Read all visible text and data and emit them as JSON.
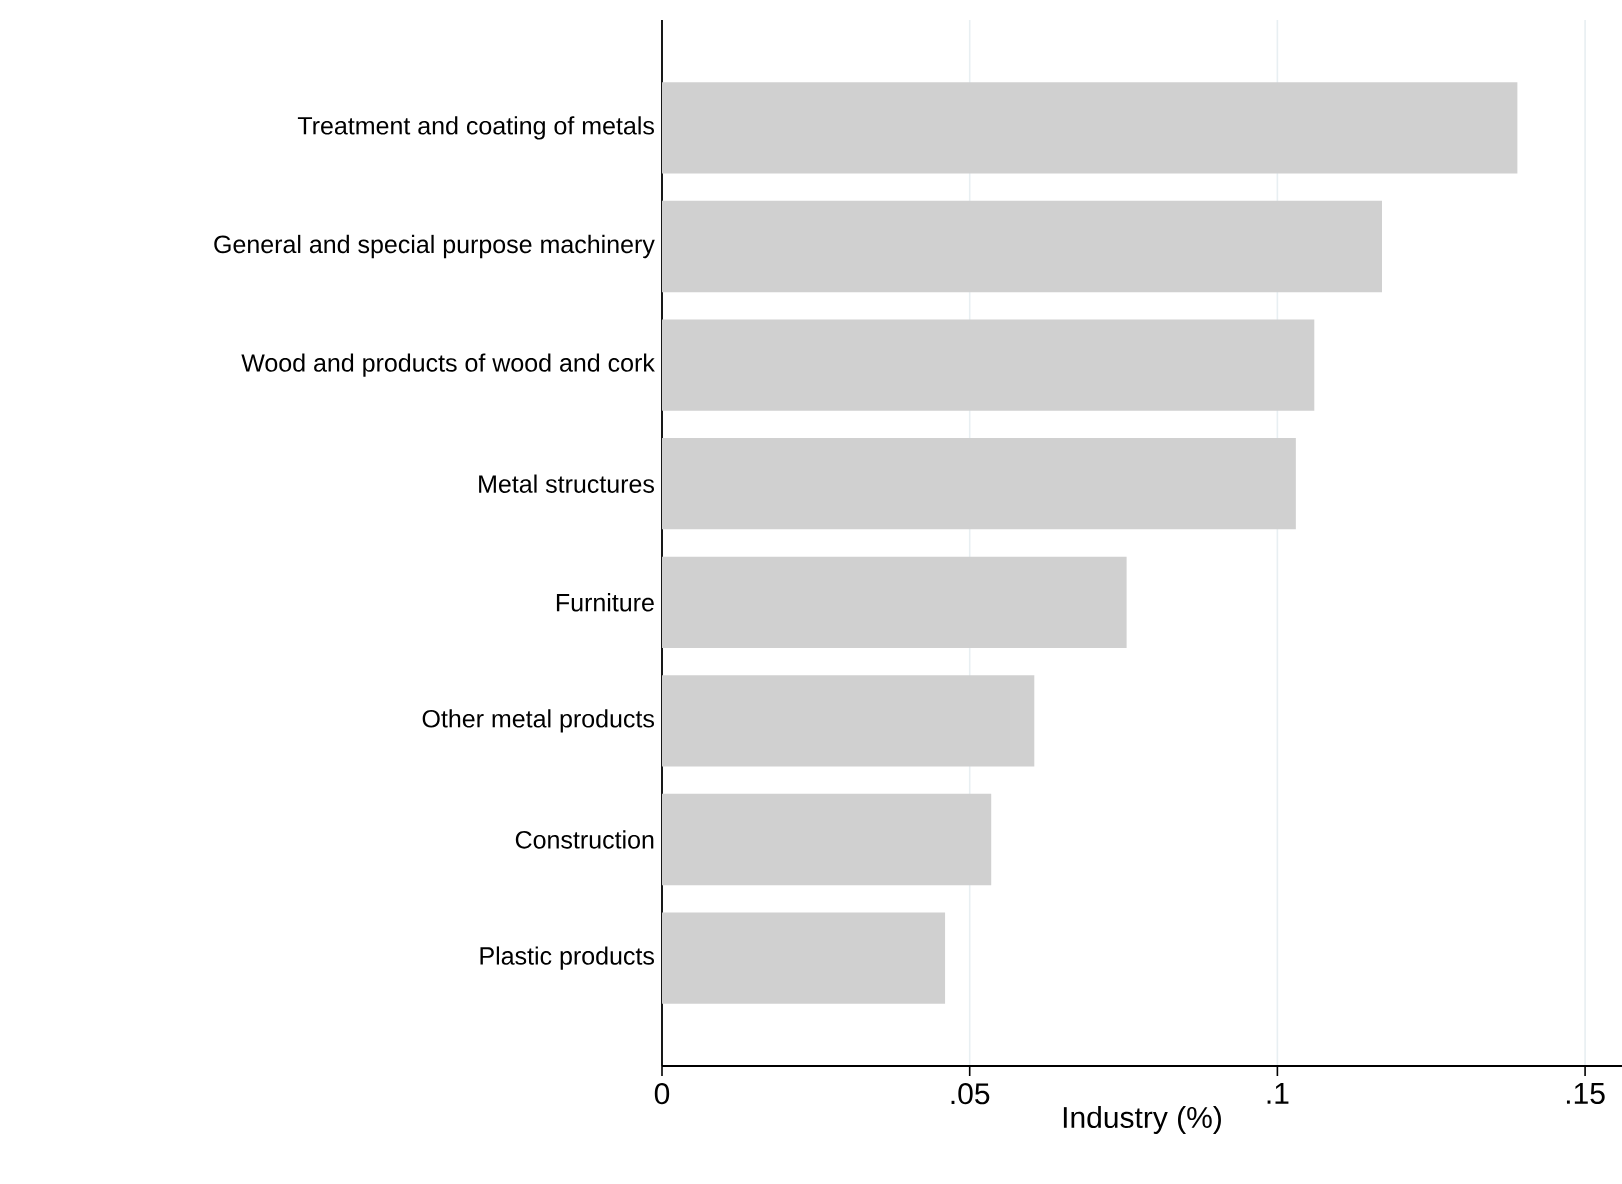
{
  "chart_data": {
    "type": "bar",
    "orientation": "horizontal",
    "xlabel": "Industry (%)",
    "categories": [
      "Treatment and coating of metals",
      "General and special purpose machinery",
      "Wood and products of wood and cork",
      "Metal structures",
      "Furniture",
      "Other metal products",
      "Construction",
      "Plastic products"
    ],
    "values": [
      0.139,
      0.117,
      0.106,
      0.103,
      0.0755,
      0.0605,
      0.0535,
      0.046
    ],
    "color": "#d0d0d0",
    "xlim": [
      0,
      0.156
    ],
    "xticks": [
      0,
      {
        "value": 0.05,
        "label": ".05"
      },
      {
        "value": 0.1,
        "label": ".1"
      },
      {
        "value": 0.15,
        "label": ".15"
      }
    ],
    "grid": "x"
  }
}
